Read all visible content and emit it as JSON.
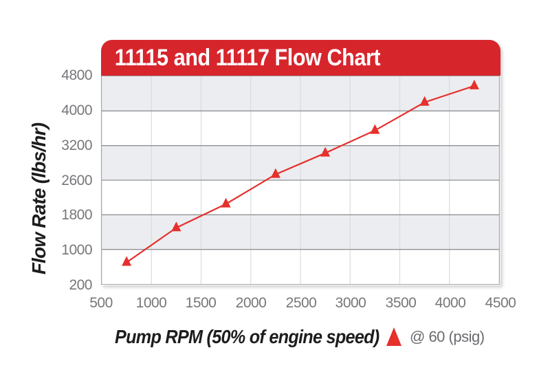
{
  "title": "11115 and 11117 Flow Chart",
  "colors": {
    "banner_red": "#D7252C",
    "series_red": "#E5302C",
    "band_gray": "#ECEDF0",
    "band_white": "#FFFFFF",
    "grid_vertical": "#D9DBDD",
    "grid_horizontal": "#8F9194",
    "plot_border": "#A2A4A7",
    "tick_label_gray": "#76777A",
    "axis_title_black": "#1E1C1D",
    "legend_text_gray": "#6A6B6E",
    "title_text_white": "#FFFFFF"
  },
  "legend": {
    "marker": "triangle-up-icon",
    "label": "@ 60 (psig)"
  },
  "chart_data": {
    "type": "line",
    "title": "11115 and 11117 Flow Chart",
    "xlabel": "Pump RPM (50% of engine speed)",
    "ylabel": "Flow Rate (lbs/hr)",
    "x_ticks": [
      500,
      1000,
      1500,
      2000,
      2500,
      3000,
      3500,
      4000,
      4500
    ],
    "y_ticks": [
      4800,
      4000,
      3200,
      2600,
      1800,
      1000,
      200
    ],
    "xlim": [
      500,
      4500
    ],
    "y_scale": "banded-equal-spacing (tick labels evenly spaced top to bottom)",
    "grid": true,
    "band_fill": "alternating gray/white rows starting gray at top",
    "legend_position": "below chart, bottom-right",
    "series": [
      {
        "name": "@ 60 (psig)",
        "marker": "triangle-up",
        "color": "#E5302C",
        "x": [
          750,
          1250,
          1750,
          2250,
          2750,
          3250,
          3750,
          4250
        ],
        "y": [
          700,
          1500,
          2050,
          2700,
          3070,
          3550,
          4200,
          4580
        ]
      }
    ]
  }
}
